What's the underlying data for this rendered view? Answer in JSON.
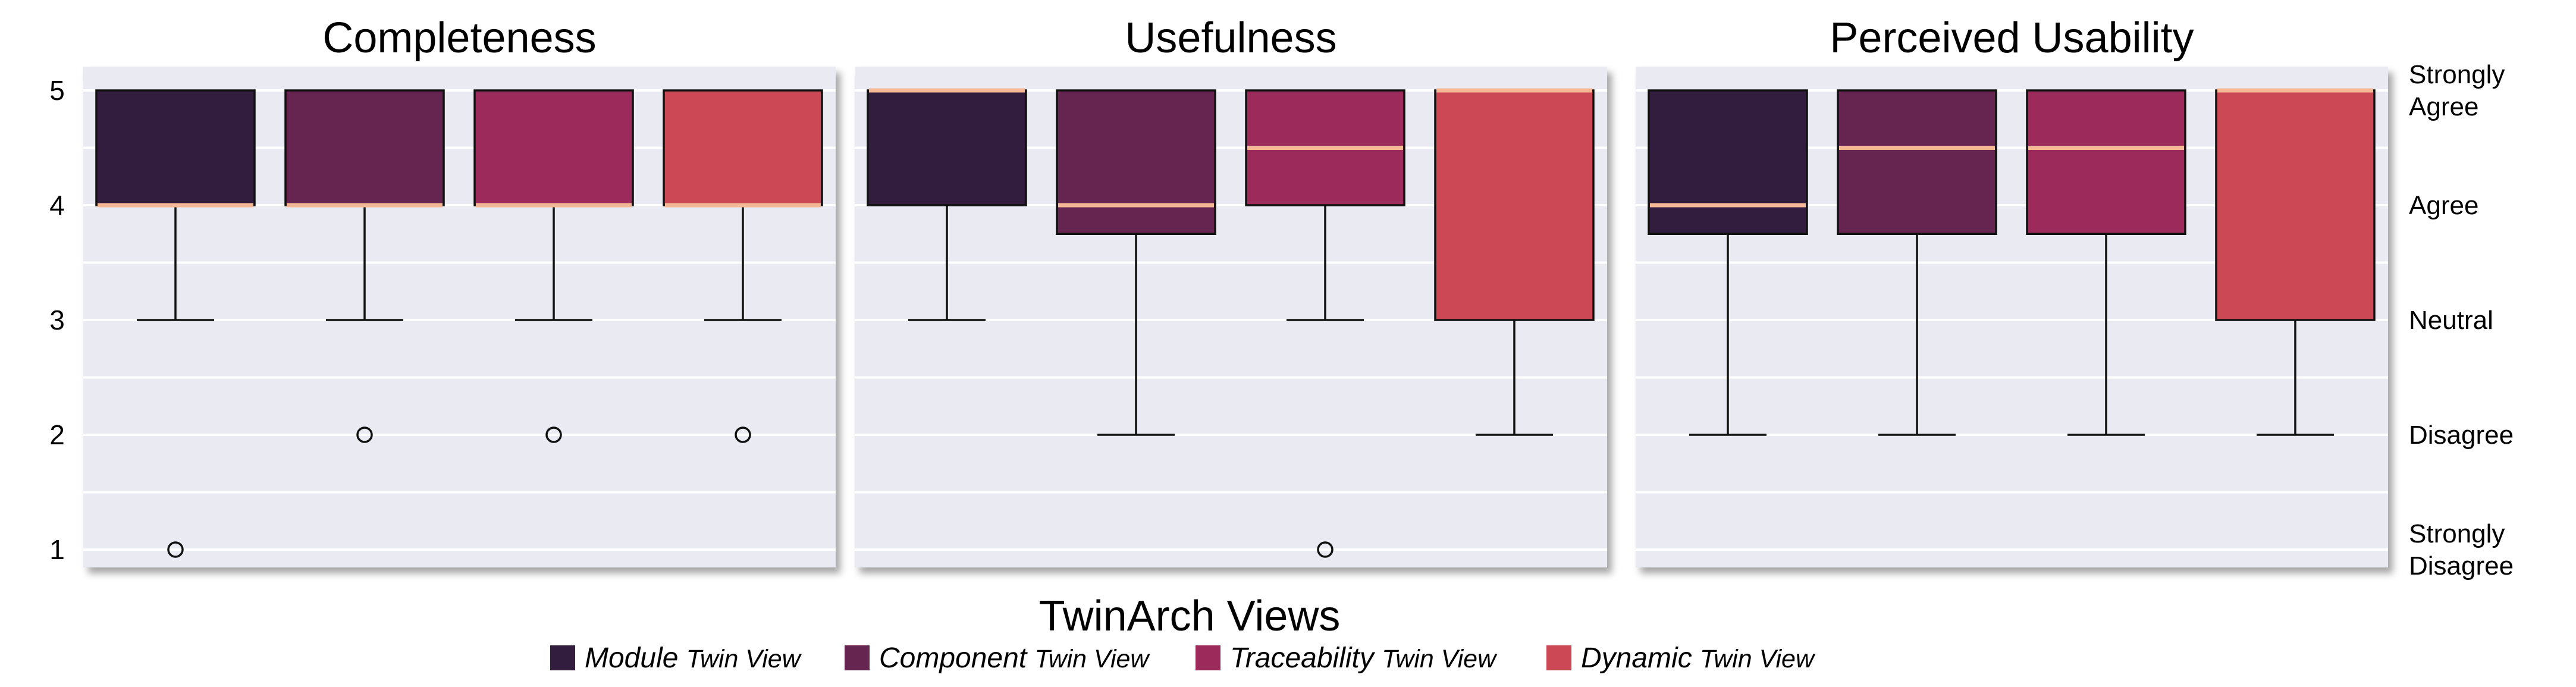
{
  "chart_data": {
    "type": "box",
    "xlabel": "TwinArch Views",
    "ylim": [
      0.6,
      5.2
    ],
    "y_ticks": [
      "1",
      "2",
      "3",
      "4",
      "5"
    ],
    "right_labels": [
      {
        "value": 5,
        "lines": [
          "Strongly",
          "Agree"
        ]
      },
      {
        "value": 4,
        "lines": [
          "Agree"
        ]
      },
      {
        "value": 3,
        "lines": [
          "Neutral"
        ]
      },
      {
        "value": 2,
        "lines": [
          "Disagree"
        ]
      },
      {
        "value": 1,
        "lines": [
          "Strongly",
          "Disagree"
        ]
      }
    ],
    "legend": [
      {
        "emph": "Module",
        "rest": "Twin View",
        "color": "#331d3f"
      },
      {
        "emph": "Component",
        "rest": "Twin View",
        "color": "#652550"
      },
      {
        "emph": "Traceability",
        "rest": "Twin View",
        "color": "#9c2a5a"
      },
      {
        "emph": "Dynamic",
        "rest": "Twin View",
        "color": "#cc4855"
      }
    ],
    "median_color": "#f5b895",
    "panels": [
      {
        "title": "Completeness",
        "boxes": [
          {
            "q1": 4,
            "median": 4,
            "q3": 5,
            "whisker_low": 3,
            "whisker_high": 5,
            "outliers": [
              1
            ]
          },
          {
            "q1": 4,
            "median": 4,
            "q3": 5,
            "whisker_low": 3,
            "whisker_high": 5,
            "outliers": [
              2
            ]
          },
          {
            "q1": 4,
            "median": 4,
            "q3": 5,
            "whisker_low": 3,
            "whisker_high": 5,
            "outliers": [
              2
            ]
          },
          {
            "q1": 4,
            "median": 4,
            "q3": 5,
            "whisker_low": 3,
            "whisker_high": 5,
            "outliers": [
              2
            ]
          }
        ]
      },
      {
        "title": "Usefulness",
        "boxes": [
          {
            "q1": 4,
            "median": 5,
            "q3": 5,
            "whisker_low": 3,
            "whisker_high": 5,
            "outliers": []
          },
          {
            "q1": 3.75,
            "median": 4,
            "q3": 5,
            "whisker_low": 2,
            "whisker_high": 5,
            "outliers": []
          },
          {
            "q1": 4,
            "median": 4.5,
            "q3": 5,
            "whisker_low": 3,
            "whisker_high": 5,
            "outliers": [
              1
            ]
          },
          {
            "q1": 3,
            "median": 5,
            "q3": 5,
            "whisker_low": 2,
            "whisker_high": 5,
            "outliers": []
          }
        ]
      },
      {
        "title": "Perceived Usability",
        "boxes": [
          {
            "q1": 3.75,
            "median": 4,
            "q3": 5,
            "whisker_low": 2,
            "whisker_high": 5,
            "outliers": []
          },
          {
            "q1": 3.75,
            "median": 4.5,
            "q3": 5,
            "whisker_low": 2,
            "whisker_high": 5,
            "outliers": []
          },
          {
            "q1": 3.75,
            "median": 4.5,
            "q3": 5,
            "whisker_low": 2,
            "whisker_high": 5,
            "outliers": []
          },
          {
            "q1": 3,
            "median": 5,
            "q3": 5,
            "whisker_low": 2,
            "whisker_high": 5,
            "outliers": []
          }
        ]
      }
    ]
  }
}
